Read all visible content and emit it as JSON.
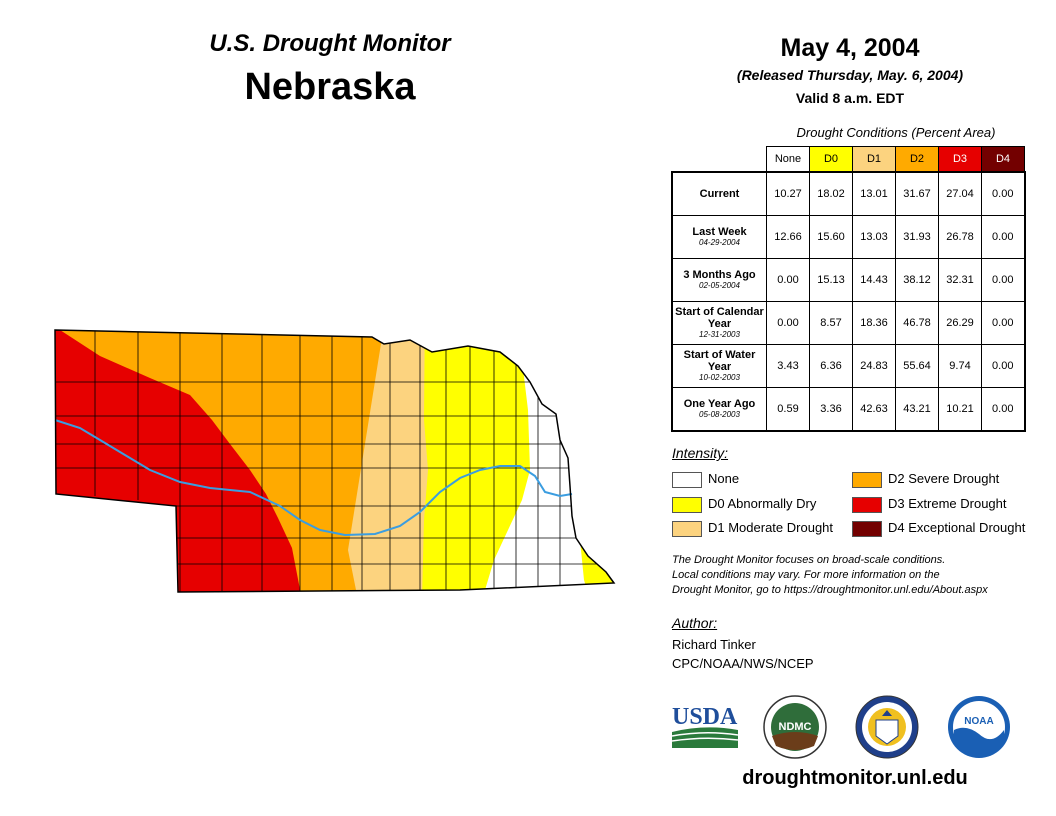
{
  "header": {
    "subtitle": "U.S. Drought Monitor",
    "state": "Nebraska",
    "date": "May 4, 2004",
    "released": "(Released Thursday, May. 6, 2004)",
    "valid": "Valid 8 a.m. EDT"
  },
  "table": {
    "title": "Drought Conditions (Percent Area)",
    "columns": [
      {
        "label": "None",
        "color": "#ffffff",
        "text": "#000000"
      },
      {
        "label": "D0",
        "color": "#ffff00",
        "text": "#000000"
      },
      {
        "label": "D1",
        "color": "#fcd37f",
        "text": "#000000"
      },
      {
        "label": "D2",
        "color": "#ffaa00",
        "text": "#000000"
      },
      {
        "label": "D3",
        "color": "#e60000",
        "text": "#ffffff"
      },
      {
        "label": "D4",
        "color": "#730000",
        "text": "#ffffff"
      }
    ],
    "rows": [
      {
        "label": "Current",
        "date": "",
        "values": [
          "10.27",
          "18.02",
          "13.01",
          "31.67",
          "27.04",
          "0.00"
        ]
      },
      {
        "label": "Last Week",
        "date": "04-29-2004",
        "values": [
          "12.66",
          "15.60",
          "13.03",
          "31.93",
          "26.78",
          "0.00"
        ]
      },
      {
        "label": "3 Months Ago",
        "date": "02-05-2004",
        "values": [
          "0.00",
          "15.13",
          "14.43",
          "38.12",
          "32.31",
          "0.00"
        ]
      },
      {
        "label": "Start of Calendar Year",
        "date": "12-31-2003",
        "values": [
          "0.00",
          "8.57",
          "18.36",
          "46.78",
          "26.29",
          "0.00"
        ]
      },
      {
        "label": "Start of Water Year",
        "date": "10-02-2003",
        "values": [
          "3.43",
          "6.36",
          "24.83",
          "55.64",
          "9.74",
          "0.00"
        ]
      },
      {
        "label": "One Year Ago",
        "date": "05-08-2003",
        "values": [
          "0.59",
          "3.36",
          "42.63",
          "43.21",
          "10.21",
          "0.00"
        ]
      }
    ]
  },
  "legend": {
    "title": "Intensity:",
    "items": [
      {
        "label": "None",
        "color": "#ffffff"
      },
      {
        "label": "D0 Abnormally Dry",
        "color": "#ffff00"
      },
      {
        "label": "D1 Moderate Drought",
        "color": "#fcd37f"
      },
      {
        "label": "D2 Severe Drought",
        "color": "#ffaa00"
      },
      {
        "label": "D3 Extreme Drought",
        "color": "#e60000"
      },
      {
        "label": "D4 Exceptional Drought",
        "color": "#730000"
      }
    ]
  },
  "note": {
    "line1": "The Drought Monitor focuses on broad-scale conditions.",
    "line2": "Local conditions may vary. For more information on the",
    "line3": "Drought Monitor, go to https://droughtmonitor.unl.edu/About.aspx"
  },
  "author": {
    "title": "Author:",
    "name": "Richard Tinker",
    "org": "CPC/NOAA/NWS/NCEP"
  },
  "logos": {
    "usda": "USDA",
    "ndmc": "NDMC",
    "noaa": "NOAA"
  },
  "website": "droughtmonitor.unl.edu",
  "map": {
    "river_color": "#3b9de0",
    "border_color": "#000000"
  }
}
